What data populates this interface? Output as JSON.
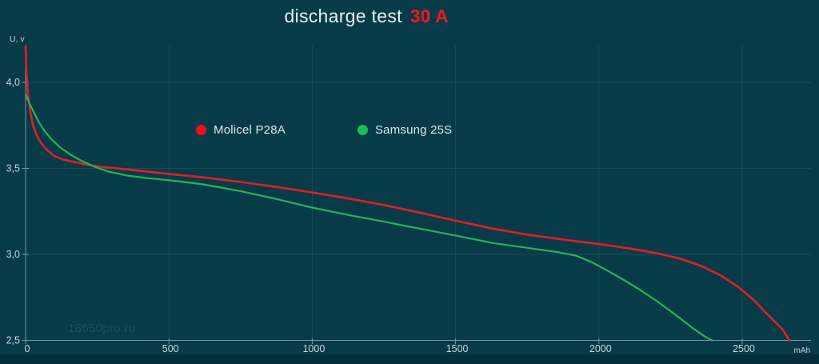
{
  "title": {
    "main": "discharge test",
    "highlight": "30 A"
  },
  "watermark": "18650pro.ru",
  "colors": {
    "background": "#073b48",
    "footer_strip": "#052e39",
    "grid": "rgba(170,225,235,0.10)",
    "axis": "#7b98a1",
    "tick_label": "#c6d7da",
    "unit_label": "#c6d7da",
    "title_text": "#e8eeee",
    "title_highlight": "#ef1822",
    "series_red": "#e31e25",
    "series_green": "#25b457",
    "legend_dot_red": "#fb0a16",
    "legend_dot_green": "#16c155",
    "watermark_color": "#135061"
  },
  "legend": {
    "items": [
      {
        "label": "Molicel P28A"
      },
      {
        "label": "Samsung 25S"
      }
    ]
  },
  "chart_data": {
    "type": "line",
    "title": "discharge test 30 A",
    "xlabel": "mAh",
    "ylabel": "U, v",
    "xlim": [
      0,
      2740
    ],
    "ylim": [
      2.5,
      4.25
    ],
    "grid": true,
    "legend_position": "top-center",
    "x_ticks": [
      0,
      500,
      1000,
      1500,
      2000,
      2500
    ],
    "x_tick_labels": [
      "0",
      "500",
      "1000",
      "1500",
      "2000",
      "2500"
    ],
    "y_ticks": [
      4.0,
      3.5,
      3.0,
      2.5
    ],
    "y_tick_labels": [
      "4,0",
      "3,5",
      "3,0",
      "2,5"
    ],
    "series": [
      {
        "name": "Molicel P28A",
        "color": "#e31e25",
        "points": [
          [
            0,
            4.21
          ],
          [
            3,
            4.06
          ],
          [
            8,
            3.94
          ],
          [
            15,
            3.84
          ],
          [
            25,
            3.755
          ],
          [
            38,
            3.695
          ],
          [
            55,
            3.645
          ],
          [
            75,
            3.607
          ],
          [
            100,
            3.572
          ],
          [
            130,
            3.552
          ],
          [
            170,
            3.537
          ],
          [
            215,
            3.521
          ],
          [
            265,
            3.509
          ],
          [
            330,
            3.498
          ],
          [
            410,
            3.484
          ],
          [
            500,
            3.468
          ],
          [
            620,
            3.448
          ],
          [
            750,
            3.421
          ],
          [
            880,
            3.391
          ],
          [
            1000,
            3.36
          ],
          [
            1120,
            3.327
          ],
          [
            1250,
            3.287
          ],
          [
            1380,
            3.241
          ],
          [
            1500,
            3.196
          ],
          [
            1630,
            3.15
          ],
          [
            1750,
            3.115
          ],
          [
            1880,
            3.085
          ],
          [
            2000,
            3.06
          ],
          [
            2110,
            3.034
          ],
          [
            2210,
            3.004
          ],
          [
            2290,
            2.972
          ],
          [
            2360,
            2.93
          ],
          [
            2425,
            2.878
          ],
          [
            2485,
            2.812
          ],
          [
            2540,
            2.736
          ],
          [
            2590,
            2.648
          ],
          [
            2640,
            2.565
          ],
          [
            2665,
            2.5
          ]
        ]
      },
      {
        "name": "Samsung 25S",
        "color": "#25b457",
        "points": [
          [
            0,
            3.93
          ],
          [
            6,
            3.905
          ],
          [
            15,
            3.873
          ],
          [
            28,
            3.828
          ],
          [
            45,
            3.773
          ],
          [
            65,
            3.72
          ],
          [
            90,
            3.67
          ],
          [
            120,
            3.623
          ],
          [
            155,
            3.582
          ],
          [
            195,
            3.544
          ],
          [
            240,
            3.51
          ],
          [
            290,
            3.481
          ],
          [
            355,
            3.458
          ],
          [
            430,
            3.443
          ],
          [
            520,
            3.428
          ],
          [
            620,
            3.407
          ],
          [
            750,
            3.368
          ],
          [
            880,
            3.32
          ],
          [
            1000,
            3.272
          ],
          [
            1120,
            3.231
          ],
          [
            1250,
            3.19
          ],
          [
            1380,
            3.148
          ],
          [
            1500,
            3.11
          ],
          [
            1630,
            3.066
          ],
          [
            1750,
            3.038
          ],
          [
            1850,
            3.015
          ],
          [
            1920,
            2.993
          ],
          [
            1975,
            2.955
          ],
          [
            2025,
            2.91
          ],
          [
            2080,
            2.858
          ],
          [
            2140,
            2.798
          ],
          [
            2205,
            2.725
          ],
          [
            2270,
            2.645
          ],
          [
            2330,
            2.568
          ],
          [
            2372,
            2.52
          ],
          [
            2395,
            2.5
          ]
        ]
      }
    ]
  }
}
